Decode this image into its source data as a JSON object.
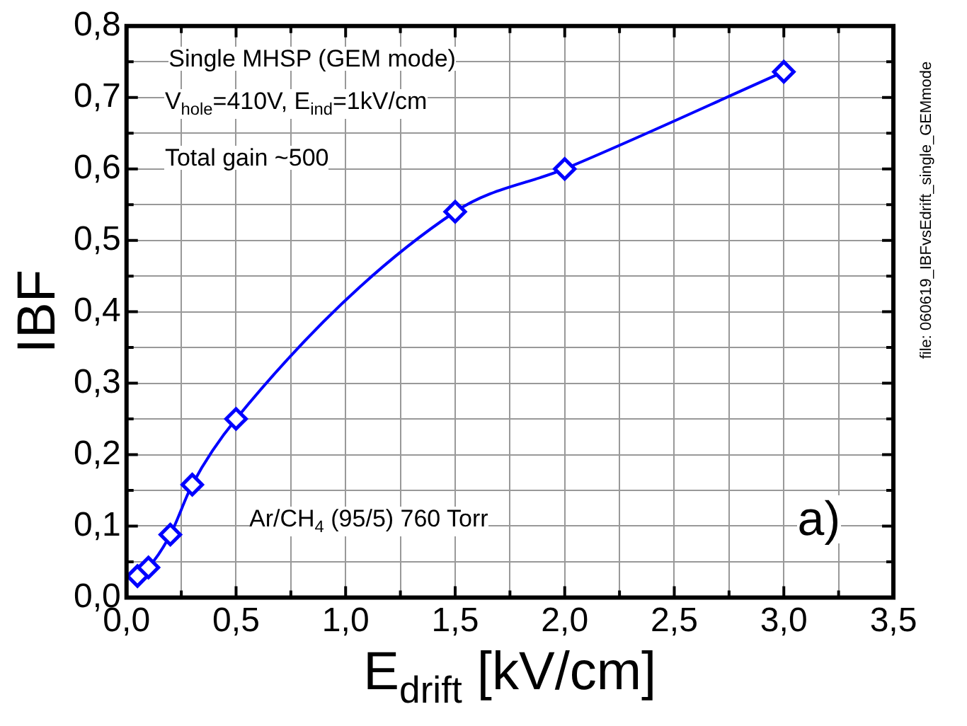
{
  "chart_data": {
    "type": "line",
    "xlabel": "E$_{drift}$ [kV/cm]",
    "ylabel": "IBF",
    "x": [
      0.05,
      0.1,
      0.2,
      0.3,
      0.5,
      1.5,
      2.0,
      3.0
    ],
    "series": [
      {
        "color": "#0000ff",
        "values": [
          0.03,
          0.042,
          0.088,
          0.158,
          0.25,
          0.54,
          0.6,
          0.736
        ]
      }
    ],
    "xlim": [
      0,
      3.5
    ],
    "xticks": [
      {
        "value": 0,
        "label": "0,0"
      },
      {
        "value": 0.25,
        "label": null
      },
      {
        "value": 0.5,
        "label": "0,5"
      },
      {
        "value": 0.75,
        "label": null
      },
      {
        "value": 1,
        "label": "1,0"
      },
      {
        "value": 1.25,
        "label": null
      },
      {
        "value": 1.5,
        "label": "1,5"
      },
      {
        "value": 1.75,
        "label": null
      },
      {
        "value": 2,
        "label": "2,0"
      },
      {
        "value": 2.25,
        "label": null
      },
      {
        "value": 2.5,
        "label": "2,5"
      },
      {
        "value": 2.75,
        "label": null
      },
      {
        "value": 3,
        "label": "3,0"
      },
      {
        "value": 3.25,
        "label": null
      },
      {
        "value": 3.5,
        "label": "3,5"
      }
    ],
    "ylim": [
      0,
      0.8
    ],
    "yticks": [
      {
        "value": 0,
        "label": "0,0"
      },
      {
        "value": 0.05,
        "label": null
      },
      {
        "value": 0.1,
        "label": "0,1"
      },
      {
        "value": 0.15,
        "label": null
      },
      {
        "value": 0.2,
        "label": "0,2"
      },
      {
        "value": 0.25,
        "label": null
      },
      {
        "value": 0.3,
        "label": "0,3"
      },
      {
        "value": 0.35,
        "label": null
      },
      {
        "value": 0.4,
        "label": "0,4"
      },
      {
        "value": 0.45,
        "label": null
      },
      {
        "value": 0.5,
        "label": "0,5"
      },
      {
        "value": 0.55,
        "label": null
      },
      {
        "value": 0.6,
        "label": "0,6"
      },
      {
        "value": 0.65,
        "label": null
      },
      {
        "value": 0.7,
        "label": "0,7"
      },
      {
        "value": 0.75,
        "label": null
      },
      {
        "value": 0.8,
        "label": "0,8"
      }
    ],
    "grid": true,
    "legend": false,
    "marker": "diamond",
    "line_style": "solid",
    "annotations": [
      "Single MHSP (GEM mode)",
      "V$_{hole}$=410V, E$_{ind}$=1kV/cm",
      "Total gain ~500",
      "Ar/CH$_{4}$ (95/5) 760 Torr",
      "a)",
      "file: 060619_IBFvsEdrift_single_GEMmode"
    ]
  }
}
